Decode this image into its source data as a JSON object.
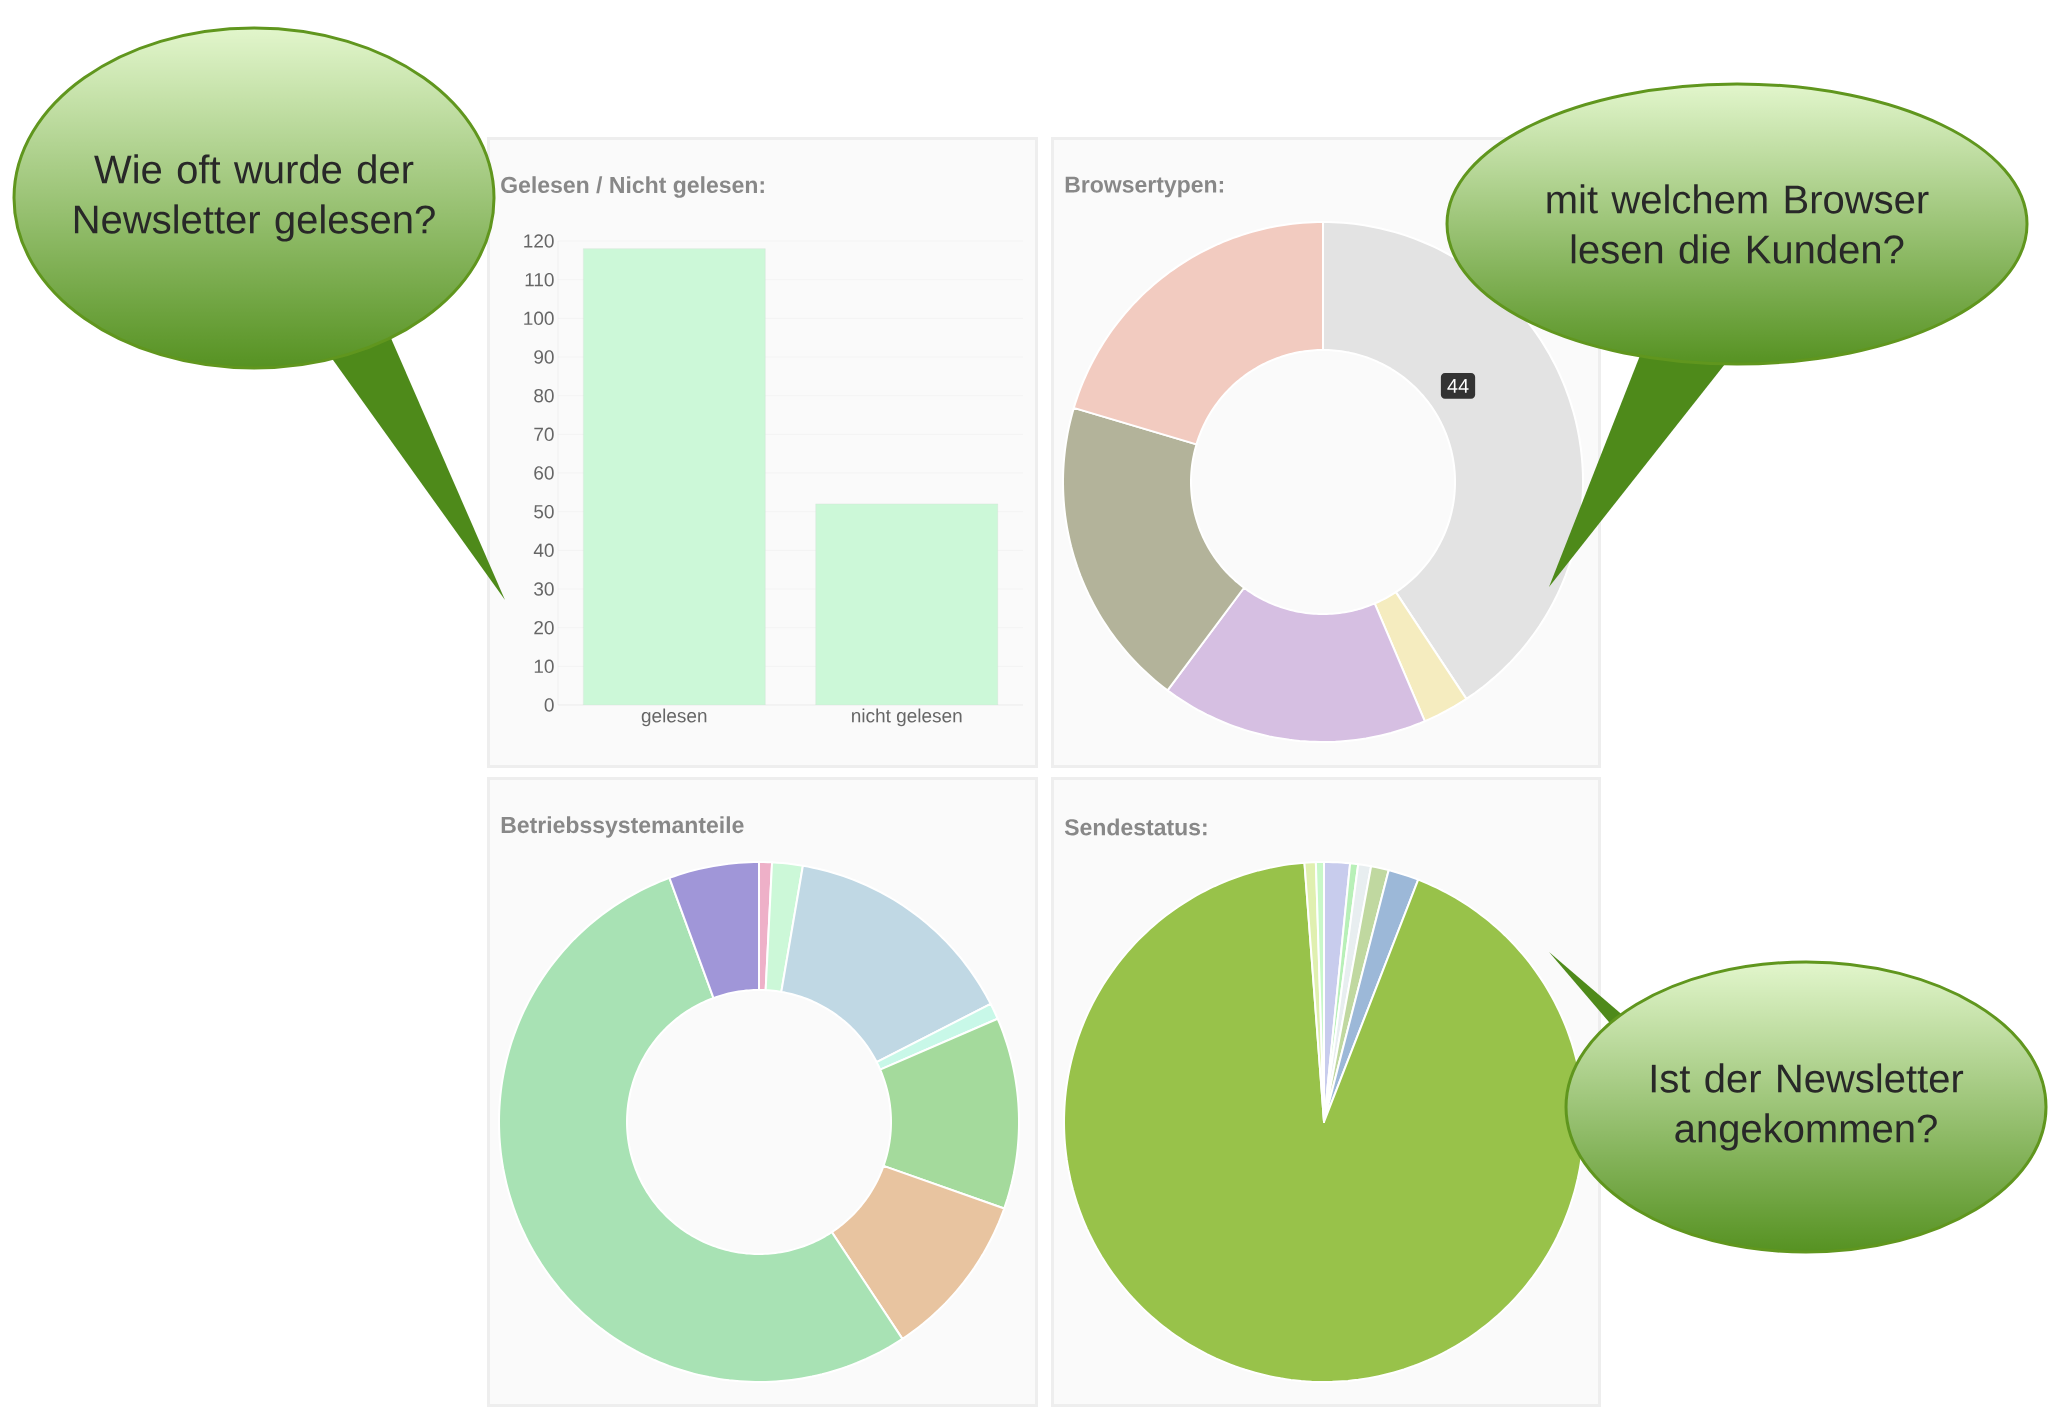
{
  "chart_data": [
    {
      "type": "bar",
      "title": "Gelesen / Nicht gelesen:",
      "categories": [
        "gelesen",
        "nicht gelesen"
      ],
      "values": [
        118,
        52
      ],
      "color": "#ccf8d8",
      "ylim": [
        0,
        120
      ],
      "yticks": [
        0,
        10,
        20,
        30,
        40,
        50,
        60,
        70,
        80,
        90,
        100,
        110,
        120
      ],
      "grid": "y",
      "annotations": [
        "Wie oft wurde der Newsletter gelesen?"
      ]
    },
    {
      "type": "donut",
      "title": "Browsertypen:",
      "categories": [
        null,
        null,
        null,
        null,
        null
      ],
      "values": [
        40.7,
        2.9,
        16.6,
        19.4,
        20.4
      ],
      "colors": [
        "#e3e3e3",
        "#f5ecbf",
        "#d6bfe2",
        "#b3b39a",
        "#f2cbc0"
      ],
      "annotations": [
        "44",
        "mit welchem Browser lesen die Kunden?"
      ]
    },
    {
      "type": "donut",
      "title": "Betriebssystemanteile",
      "categories": [
        null,
        null,
        null,
        null,
        null,
        null,
        null,
        null
      ],
      "values": [
        0.8,
        1.9,
        14.8,
        1.0,
        11.9,
        10.3,
        53.7,
        5.6
      ],
      "colors": [
        "#eeb0c8",
        "#ccf8d8",
        "#c0d8e4",
        "#c8f8e8",
        "#a4da9c",
        "#e8c4a0",
        "#a8e2b4",
        "#a096d8"
      ]
    },
    {
      "type": "pie",
      "title": "Sendestatus:",
      "categories": [
        null,
        null,
        null,
        null,
        null,
        null,
        null,
        null
      ],
      "values": [
        1.6,
        0.5,
        0.8,
        1.1,
        1.9,
        92.9,
        0.7,
        0.5
      ],
      "colors": [
        "#c8cced",
        "#b8f0b8",
        "#e8eef0",
        "#c0d8a0",
        "#9cb8d8",
        "#98c24a",
        "#e0f0b0",
        "#c8f8c8"
      ],
      "annotations": [
        "Ist der Newsletter angekommen?"
      ]
    }
  ]
}
